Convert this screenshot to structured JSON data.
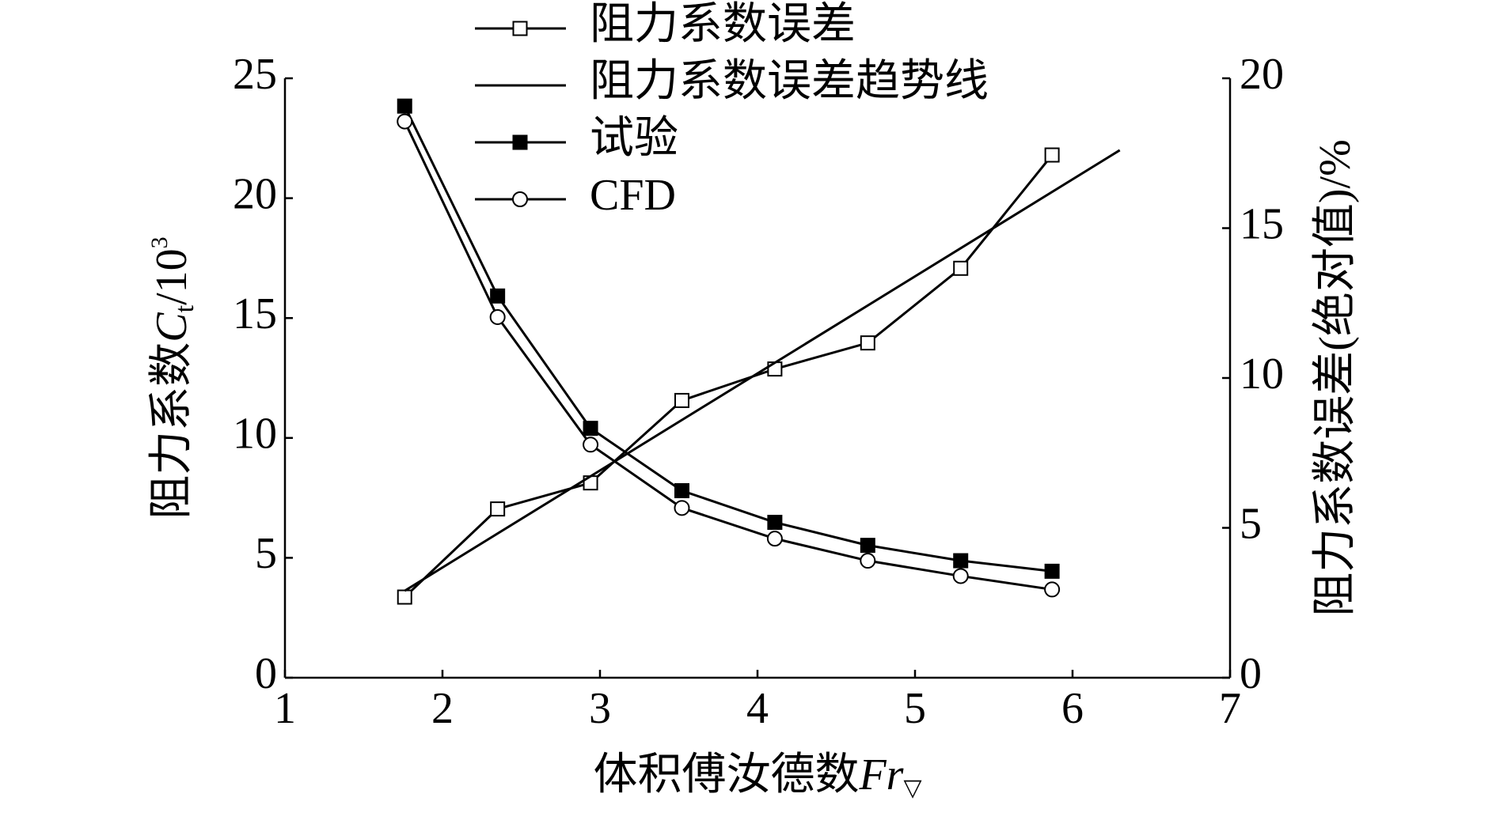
{
  "chart_data": {
    "type": "line",
    "x_label": {
      "text": "体积傅汝德数",
      "symbol": "Fr",
      "subscript": "▽"
    },
    "y_label": {
      "text": "阻力系数",
      "symbol": "C",
      "subscript": "t",
      "unit": "/10",
      "exponent": "3"
    },
    "y2_label": "阻力系数误差(绝对值)/%",
    "x": [
      1.76,
      2.35,
      2.94,
      3.52,
      4.11,
      4.7,
      5.29,
      5.87
    ],
    "xlim": [
      1,
      7
    ],
    "xticks": [
      1,
      2,
      3,
      4,
      5,
      6,
      7
    ],
    "ylim": [
      0,
      25
    ],
    "yticks": [
      0,
      5,
      10,
      15,
      20,
      25
    ],
    "y2lim": [
      0,
      20
    ],
    "y2ticks": [
      0,
      5,
      10,
      15,
      20
    ],
    "legend": "upper-left",
    "series": [
      {
        "name": "阻力系数误差",
        "color": "#000000",
        "marker": "open-square",
        "axis": "y2",
        "values": [
          2.69,
          5.63,
          6.5,
          9.25,
          10.3,
          11.17,
          13.66,
          17.44
        ]
      },
      {
        "name": "阻力系数误差趋势线",
        "color": "#000000",
        "marker": "none",
        "axis": "y2",
        "x": [
          1.76,
          6.3
        ],
        "values": [
          2.9,
          17.6
        ]
      },
      {
        "name": "试验",
        "color": "#000000",
        "marker": "filled-square",
        "values": [
          23.84,
          15.92,
          10.4,
          7.8,
          6.48,
          5.52,
          4.88,
          4.44
        ]
      },
      {
        "name": "CFD",
        "color": "#000000",
        "marker": "open-circle",
        "values": [
          23.2,
          15.04,
          9.72,
          7.08,
          5.8,
          4.88,
          4.24,
          3.68
        ]
      }
    ]
  }
}
